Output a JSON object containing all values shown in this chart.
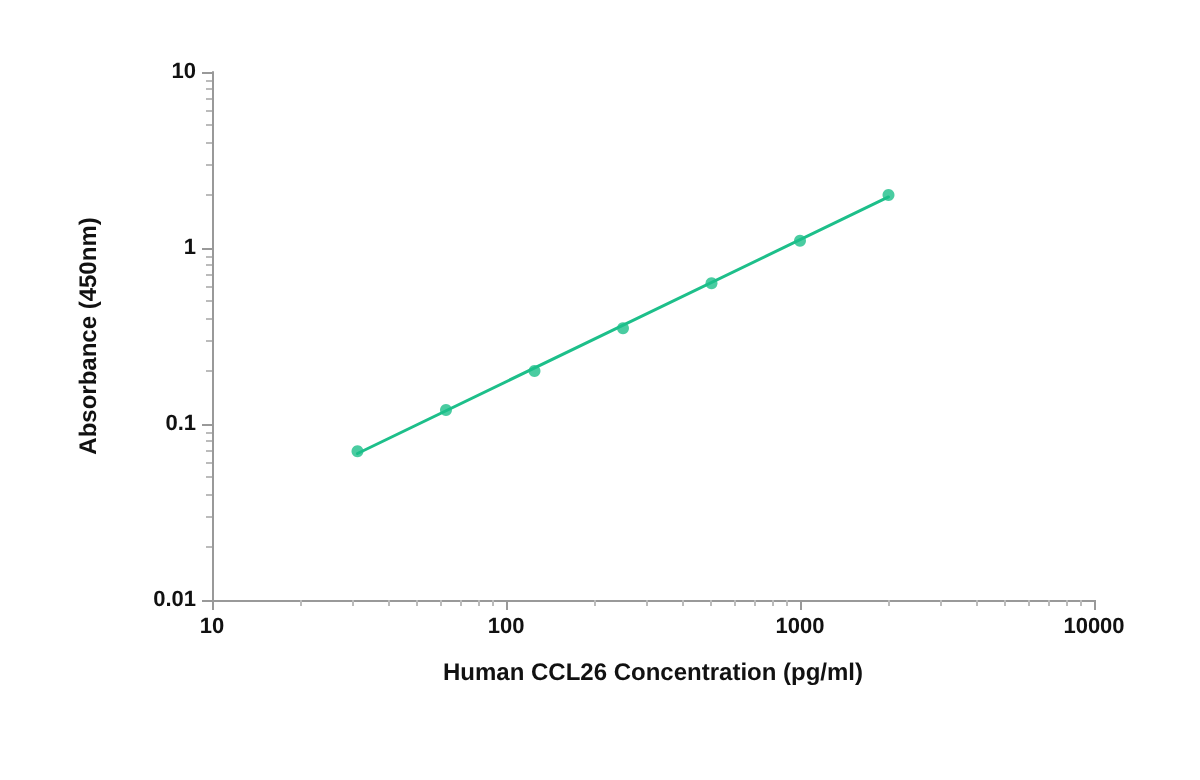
{
  "chart_data": {
    "type": "scatter",
    "xlabel": "Human CCL26 Concentration (pg/ml)",
    "ylabel": "Absorbance (450nm)",
    "log": "xy",
    "xlim": [
      10,
      10000
    ],
    "xticks": [
      10,
      100,
      1000,
      10000
    ],
    "ylim": [
      0.01,
      10
    ],
    "yticks": [
      0.01,
      0.1,
      1,
      10
    ],
    "grid": false,
    "marker": "circle",
    "x": [
      31.25,
      62.5,
      125,
      250,
      500,
      1000,
      2000
    ],
    "series": [
      {
        "color": "#1dbf8a",
        "values": [
          0.07,
          0.12,
          0.2,
          0.35,
          0.63,
          1.1,
          2.0
        ]
      },
      {
        "type": "line",
        "color": "#1dbf8a",
        "marker": "none",
        "line_style": "solid",
        "x": [
          31.25,
          2000
        ],
        "values": [
          0.068,
          1.95
        ]
      }
    ]
  }
}
